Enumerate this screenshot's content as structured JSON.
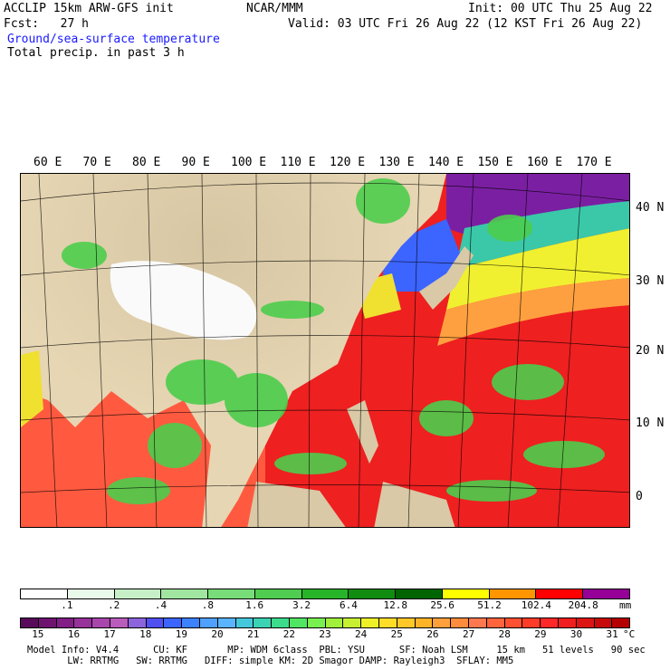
{
  "header": {
    "left1": "ACCLIP 15km ARW-GFS init",
    "center1": "NCAR/MMM",
    "right1": "Init: 00 UTC Thu 25 Aug 22",
    "left2": "Fcst:   27 h",
    "right2": "Valid: 03 UTC Fri 26 Aug 22 (12 KST Fri 26 Aug 22)",
    "field1": "Ground/sea-surface temperature",
    "field2": "Total precip. in past 3 h"
  },
  "lon_labels": [
    "60 E",
    "70 E",
    "80 E",
    "90 E",
    "100 E",
    "110 E",
    "120 E",
    "130 E",
    "140 E",
    "150 E",
    "160 E",
    "170 E"
  ],
  "lat_labels": [
    "40 N",
    "30 N",
    "20 N",
    "10 N",
    "0"
  ],
  "precip_scale": {
    "ticks": [
      ".1",
      ".2",
      ".4",
      ".8",
      "1.6",
      "3.2",
      "6.4",
      "12.8",
      "25.6",
      "51.2",
      "102.4",
      "204.8"
    ],
    "unit": "mm",
    "colors": [
      "#ffffff",
      "#eafaea",
      "#c8f0c8",
      "#a0e6a0",
      "#78dc78",
      "#50cd50",
      "#28b428",
      "#108c10",
      "#006400",
      "#ffff00",
      "#ff9600",
      "#ff0000",
      "#960096"
    ]
  },
  "temp_scale": {
    "ticks": [
      "15",
      "16",
      "17",
      "18",
      "19",
      "20",
      "21",
      "22",
      "23",
      "24",
      "25",
      "26",
      "27",
      "28",
      "29",
      "30",
      "31"
    ],
    "unit": "°C",
    "colors": [
      "#5a0a5a",
      "#6e1470",
      "#821e86",
      "#96329a",
      "#a846ac",
      "#b95cbc",
      "#8c64dc",
      "#5050f0",
      "#3c64ff",
      "#3c82ff",
      "#50a0ff",
      "#5ab4ff",
      "#46c8dc",
      "#3cd2b4",
      "#3cdc8c",
      "#50e664",
      "#78f050",
      "#a0f03c",
      "#c8f032",
      "#f0f028",
      "#ffdc28",
      "#ffc828",
      "#ffb428",
      "#ffa03c",
      "#ff8c3c",
      "#ff7850",
      "#ff643c",
      "#ff5032",
      "#ff3c28",
      "#ff2828",
      "#f01e1e",
      "#dc1414",
      "#c80a0a",
      "#b40000"
    ]
  },
  "footer": {
    "line1": "Model Info: V4.4      CU: KF       MP: WDM 6class  PBL: YSU      SF: Noah LSM     15 km   51 levels   90 sec",
    "line2": "       LW: RRTMG   SW: RRTMG   DIFF: simple KM: 2D Smagor DAMP: Rayleigh3  SFLAY: MM5"
  }
}
